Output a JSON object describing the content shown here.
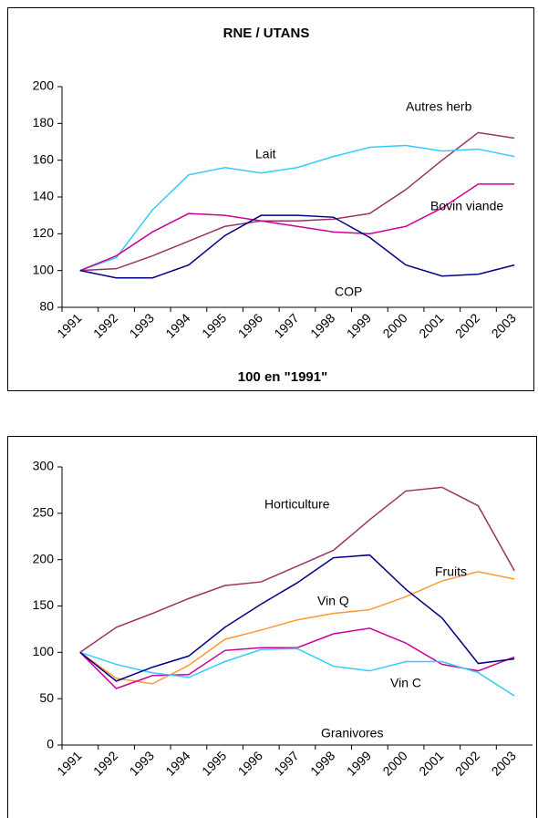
{
  "chart_data": [
    {
      "type": "line",
      "title": "RNE / UTANS",
      "x_label": "100 en \"1991\"",
      "categories": [
        "1991",
        "1992",
        "1993",
        "1994",
        "1995",
        "1996",
        "1997",
        "1998",
        "1999",
        "2000",
        "2001",
        "2002",
        "2003"
      ],
      "ylim": [
        80,
        200
      ],
      "yticks": [
        80,
        100,
        120,
        140,
        160,
        180,
        200
      ],
      "grid": false,
      "series": [
        {
          "name": "Autres herb",
          "color": "#993366",
          "values": [
            100,
            101,
            108,
            116,
            124,
            127,
            127,
            128,
            131,
            144,
            160,
            175,
            172
          ]
        },
        {
          "name": "Lait",
          "color": "#33ccff",
          "values": [
            100,
            107,
            133,
            152,
            156,
            153,
            156,
            162,
            167,
            168,
            165,
            166,
            162
          ]
        },
        {
          "name": "Bovin viande",
          "color": "#cc0099",
          "values": [
            100,
            108,
            121,
            131,
            130,
            127,
            124,
            121,
            120,
            124,
            134,
            147,
            147
          ]
        },
        {
          "name": "COP",
          "color": "#000080",
          "values": [
            100,
            96,
            96,
            103,
            119,
            130,
            130,
            129,
            118,
            103,
            97,
            98,
            103
          ]
        }
      ]
    },
    {
      "type": "line",
      "categories": [
        "1991",
        "1992",
        "1993",
        "1994",
        "1995",
        "1996",
        "1997",
        "1998",
        "1999",
        "2000",
        "2001",
        "2002",
        "2003"
      ],
      "ylim": [
        0,
        300
      ],
      "yticks": [
        0,
        50,
        100,
        150,
        200,
        250,
        300
      ],
      "grid": false,
      "series": [
        {
          "name": "Horticulture",
          "color": "#993366",
          "values": [
            100,
            127,
            142,
            158,
            172,
            176,
            193,
            210,
            243,
            274,
            278,
            258,
            188
          ]
        },
        {
          "name": "Fruits",
          "color": "#ff9933",
          "values": [
            100,
            72,
            66,
            86,
            114,
            124,
            135,
            142,
            146,
            160,
            177,
            187,
            179
          ]
        },
        {
          "name": "Vin Q",
          "color": "#cc0099",
          "values": [
            100,
            61,
            75,
            76,
            102,
            105,
            105,
            120,
            126,
            110,
            87,
            80,
            95
          ]
        },
        {
          "name": "Vin C",
          "color": "#33ccff",
          "values": [
            100,
            87,
            78,
            73,
            90,
            103,
            104,
            85,
            80,
            90,
            90,
            78,
            53
          ]
        },
        {
          "name": "Granivores",
          "color": "#000080",
          "values": [
            100,
            69,
            84,
            96,
            127,
            152,
            175,
            202,
            205,
            168,
            137,
            88,
            93
          ]
        }
      ]
    }
  ]
}
